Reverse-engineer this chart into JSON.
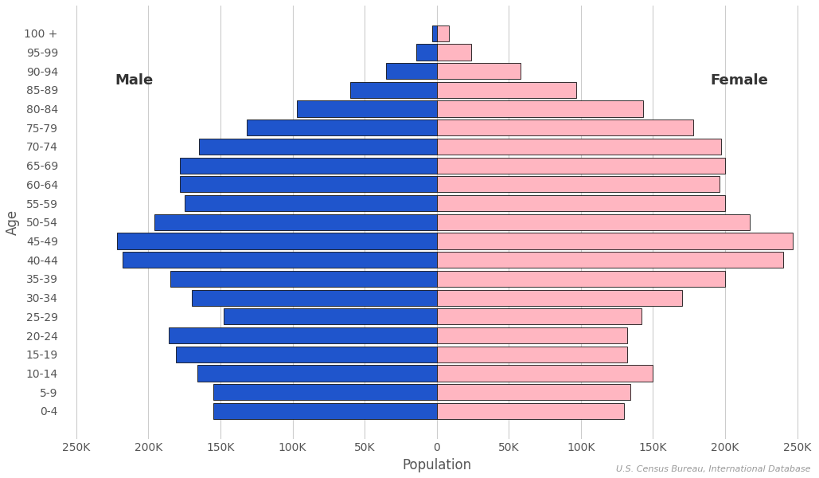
{
  "age_groups": [
    "0-4",
    "5-9",
    "10-14",
    "15-19",
    "20-24",
    "25-29",
    "30-34",
    "35-39",
    "40-44",
    "45-49",
    "50-54",
    "55-59",
    "60-64",
    "65-69",
    "70-74",
    "75-79",
    "80-84",
    "85-89",
    "90-94",
    "95-99",
    "100 +"
  ],
  "male": [
    155000,
    155000,
    166000,
    181000,
    186000,
    148000,
    170000,
    185000,
    218000,
    222000,
    196000,
    175000,
    178000,
    178000,
    165000,
    132000,
    97000,
    60000,
    35000,
    14000,
    3000
  ],
  "female": [
    130000,
    134000,
    150000,
    132000,
    132000,
    142000,
    170000,
    200000,
    240000,
    247000,
    217000,
    200000,
    196000,
    200000,
    197000,
    178000,
    143000,
    97000,
    58000,
    24000,
    8500
  ],
  "xlim": 260000,
  "xticks": [
    -250000,
    -200000,
    -150000,
    -100000,
    -50000,
    0,
    50000,
    100000,
    150000,
    200000,
    250000
  ],
  "xtick_labels": [
    "250K",
    "200K",
    "150K",
    "100K",
    "50K",
    "0",
    "50K",
    "100K",
    "150K",
    "200K",
    "250K"
  ],
  "xlabel": "Population",
  "ylabel": "Age",
  "male_color": "#1F55CC",
  "female_color": "#FFB6C1",
  "male_edgecolor": "#111111",
  "female_edgecolor": "#111111",
  "background_color": "#FFFFFF",
  "grid_color": "#CCCCCC",
  "male_label": "Male",
  "female_label": "Female",
  "source_text": "U.S. Census Bureau, International Database",
  "label_fontsize": 12,
  "tick_fontsize": 10,
  "annotation_fontsize": 13,
  "bar_height": 0.85
}
